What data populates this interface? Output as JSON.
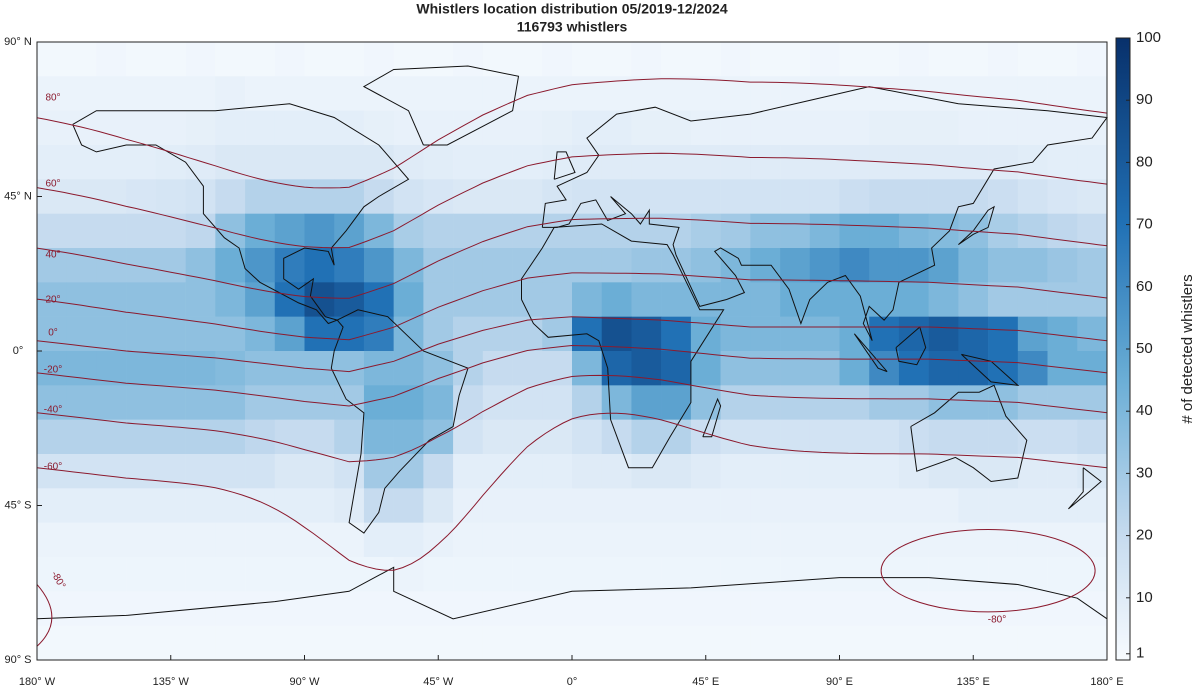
{
  "chart_data": {
    "type": "heatmap",
    "title": "Whistlers location distribution  05/2019-12/2024",
    "subtitle": "116793 whistlers",
    "xlim": [
      -180,
      180
    ],
    "ylim": [
      -90,
      90
    ],
    "xticks": [
      {
        "value": -180,
        "label": "180° W"
      },
      {
        "value": -135,
        "label": "135° W"
      },
      {
        "value": -90,
        "label": "90° W"
      },
      {
        "value": -45,
        "label": "45° W"
      },
      {
        "value": 0,
        "label": "0°"
      },
      {
        "value": 45,
        "label": "45° E"
      },
      {
        "value": 90,
        "label": "90° E"
      },
      {
        "value": 135,
        "label": "135° E"
      },
      {
        "value": 180,
        "label": "180° E"
      }
    ],
    "yticks": [
      {
        "value": 90,
        "label": "90° N"
      },
      {
        "value": 45,
        "label": "45° N"
      },
      {
        "value": 0,
        "label": "0°"
      },
      {
        "value": -45,
        "label": "45° S"
      },
      {
        "value": -90,
        "label": "90° S"
      }
    ],
    "xbins": [
      -180,
      -170,
      -160,
      -150,
      -140,
      -130,
      -120,
      -110,
      -100,
      -90,
      -80,
      -70,
      -60,
      -50,
      -40,
      -30,
      -20,
      -10,
      0,
      10,
      20,
      30,
      40,
      50,
      60,
      70,
      80,
      90,
      100,
      110,
      120,
      130,
      140,
      150,
      160,
      170,
      180
    ],
    "ybins": [
      90,
      80,
      70,
      60,
      50,
      40,
      30,
      20,
      10,
      0,
      -10,
      -20,
      -30,
      -40,
      -50,
      -60,
      -70,
      -80,
      -90
    ],
    "values": [
      [
        2,
        2,
        3,
        2,
        2,
        3,
        2,
        2,
        3,
        2,
        2,
        3,
        2,
        2,
        3,
        2,
        2,
        3,
        2,
        2,
        3,
        2,
        2,
        3,
        2,
        2,
        3,
        2,
        2,
        3,
        2,
        2,
        3,
        2,
        2,
        3
      ],
      [
        5,
        5,
        5,
        5,
        5,
        5,
        6,
        5,
        5,
        5,
        5,
        5,
        5,
        5,
        5,
        5,
        5,
        5,
        5,
        5,
        5,
        5,
        5,
        5,
        5,
        5,
        5,
        5,
        5,
        5,
        5,
        5,
        5,
        5,
        5,
        5
      ],
      [
        6,
        6,
        6,
        6,
        6,
        7,
        8,
        8,
        8,
        8,
        8,
        7,
        6,
        6,
        6,
        6,
        6,
        7,
        8,
        8,
        7,
        7,
        6,
        6,
        6,
        6,
        6,
        6,
        7,
        7,
        7,
        6,
        6,
        6,
        6,
        6
      ],
      [
        8,
        8,
        8,
        8,
        9,
        10,
        12,
        12,
        12,
        12,
        12,
        12,
        10,
        9,
        8,
        8,
        8,
        9,
        10,
        10,
        10,
        10,
        10,
        10,
        10,
        10,
        10,
        10,
        10,
        10,
        10,
        10,
        10,
        9,
        8,
        8
      ],
      [
        12,
        12,
        12,
        13,
        14,
        15,
        20,
        25,
        25,
        25,
        25,
        20,
        15,
        13,
        12,
        12,
        12,
        14,
        15,
        15,
        15,
        15,
        15,
        15,
        15,
        15,
        15,
        18,
        20,
        20,
        20,
        20,
        18,
        15,
        13,
        12
      ],
      [
        20,
        20,
        20,
        20,
        20,
        22,
        35,
        45,
        50,
        55,
        50,
        40,
        28,
        25,
        25,
        25,
        25,
        25,
        25,
        25,
        25,
        25,
        28,
        30,
        35,
        35,
        40,
        45,
        45,
        40,
        38,
        35,
        28,
        25,
        22,
        20
      ],
      [
        30,
        30,
        30,
        30,
        30,
        35,
        45,
        55,
        65,
        70,
        65,
        55,
        40,
        30,
        30,
        30,
        30,
        30,
        30,
        30,
        32,
        32,
        35,
        40,
        45,
        50,
        55,
        60,
        55,
        55,
        50,
        40,
        35,
        35,
        32,
        30
      ],
      [
        35,
        35,
        35,
        35,
        35,
        35,
        40,
        50,
        70,
        85,
        80,
        70,
        45,
        30,
        30,
        30,
        30,
        30,
        40,
        45,
        40,
        40,
        40,
        40,
        40,
        45,
        45,
        45,
        45,
        45,
        40,
        35,
        30,
        30,
        30,
        30
      ],
      [
        35,
        35,
        35,
        35,
        35,
        35,
        35,
        40,
        50,
        70,
        70,
        65,
        40,
        30,
        25,
        25,
        25,
        30,
        70,
        85,
        80,
        70,
        45,
        40,
        40,
        40,
        40,
        45,
        70,
        75,
        80,
        75,
        70,
        50,
        45,
        40
      ],
      [
        40,
        40,
        40,
        40,
        40,
        40,
        38,
        35,
        35,
        35,
        35,
        40,
        40,
        35,
        25,
        20,
        20,
        20,
        40,
        75,
        80,
        75,
        45,
        35,
        35,
        35,
        35,
        45,
        60,
        70,
        75,
        75,
        70,
        60,
        45,
        45
      ],
      [
        35,
        35,
        35,
        35,
        35,
        35,
        35,
        30,
        30,
        30,
        30,
        45,
        45,
        40,
        20,
        15,
        15,
        15,
        25,
        40,
        50,
        50,
        35,
        25,
        25,
        25,
        25,
        25,
        30,
        30,
        35,
        35,
        35,
        30,
        30,
        30
      ],
      [
        25,
        25,
        25,
        25,
        25,
        25,
        25,
        22,
        20,
        20,
        25,
        40,
        40,
        35,
        15,
        12,
        12,
        12,
        15,
        20,
        25,
        25,
        18,
        15,
        15,
        15,
        15,
        15,
        15,
        18,
        20,
        20,
        20,
        18,
        18,
        20
      ],
      [
        15,
        15,
        15,
        15,
        15,
        15,
        15,
        15,
        12,
        12,
        15,
        30,
        30,
        20,
        8,
        8,
        8,
        8,
        10,
        10,
        12,
        12,
        10,
        8,
        8,
        8,
        8,
        8,
        8,
        10,
        12,
        12,
        12,
        10,
        10,
        12
      ],
      [
        8,
        8,
        8,
        8,
        8,
        8,
        8,
        8,
        8,
        8,
        10,
        20,
        20,
        12,
        6,
        6,
        6,
        6,
        6,
        6,
        6,
        6,
        6,
        6,
        6,
        6,
        6,
        6,
        6,
        6,
        6,
        8,
        8,
        8,
        8,
        8
      ],
      [
        5,
        5,
        5,
        5,
        5,
        5,
        5,
        5,
        5,
        5,
        5,
        8,
        8,
        6,
        5,
        5,
        5,
        5,
        5,
        5,
        5,
        5,
        5,
        5,
        5,
        5,
        5,
        5,
        5,
        5,
        5,
        5,
        5,
        5,
        5,
        5
      ],
      [
        4,
        4,
        4,
        4,
        4,
        4,
        4,
        4,
        4,
        4,
        4,
        4,
        5,
        4,
        4,
        4,
        4,
        4,
        4,
        4,
        4,
        4,
        4,
        4,
        4,
        4,
        4,
        4,
        4,
        4,
        4,
        4,
        4,
        4,
        4,
        4
      ],
      [
        3,
        3,
        3,
        3,
        3,
        3,
        3,
        3,
        3,
        3,
        3,
        3,
        3,
        3,
        3,
        3,
        3,
        3,
        3,
        3,
        3,
        3,
        3,
        3,
        3,
        3,
        3,
        3,
        3,
        3,
        3,
        3,
        3,
        3,
        3,
        3
      ],
      [
        2,
        2,
        2,
        2,
        2,
        2,
        2,
        2,
        2,
        2,
        2,
        2,
        2,
        2,
        2,
        2,
        2,
        2,
        2,
        2,
        2,
        2,
        2,
        2,
        2,
        2,
        2,
        2,
        2,
        2,
        2,
        2,
        2,
        2,
        2,
        2
      ]
    ],
    "colorbar": {
      "label": "# of detected whistlers",
      "lim": [
        0,
        100
      ],
      "ticks": [
        1,
        10,
        20,
        30,
        40,
        50,
        60,
        70,
        80,
        90,
        100
      ]
    },
    "contours": [
      {
        "level": 80,
        "label": "80°"
      },
      {
        "level": 60,
        "label": "60°"
      },
      {
        "level": 40,
        "label": "40°"
      },
      {
        "level": 20,
        "label": "20°"
      },
      {
        "level": 0,
        "label": "0°"
      },
      {
        "level": -20,
        "label": "-20°"
      },
      {
        "level": -40,
        "label": "-40°"
      },
      {
        "level": -60,
        "label": "-60°"
      },
      {
        "level": -80,
        "label": "-80°"
      },
      {
        "level": -80,
        "label": "-80°"
      }
    ]
  }
}
